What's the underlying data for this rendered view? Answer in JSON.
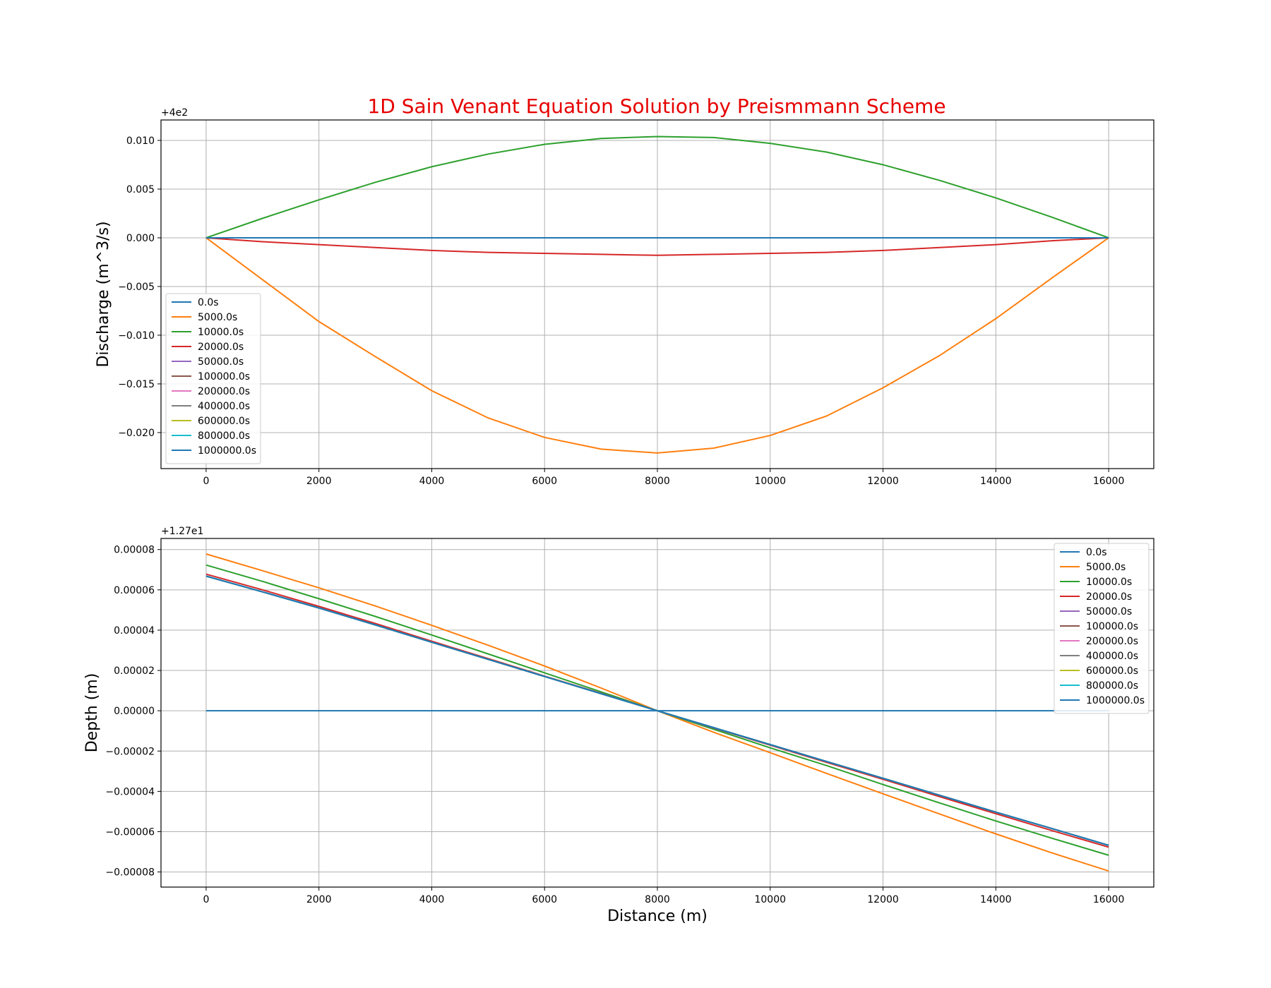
{
  "figure": {
    "title": "1D Sain Venant Equation Solution by Preismmann Scheme",
    "title_color": "#e60000"
  },
  "chart_data": [
    {
      "type": "line",
      "title": "1D Sain Venant Equation Solution by Preismmann Scheme",
      "xlabel": "",
      "ylabel": "Discharge (m^3/s)",
      "offset_label": "+4e2",
      "offset": 400,
      "xlim": [
        -800,
        16800
      ],
      "ylim": [
        -0.0237,
        0.0121
      ],
      "xticks": [
        0,
        2000,
        4000,
        6000,
        8000,
        10000,
        12000,
        14000,
        16000
      ],
      "xtick_labels": [
        "0",
        "2000",
        "4000",
        "6000",
        "8000",
        "10000",
        "12000",
        "14000",
        "16000"
      ],
      "yticks": [
        0.01,
        0.005,
        0.0,
        -0.005,
        -0.01,
        -0.015,
        -0.02
      ],
      "ytick_labels": [
        "0.010",
        "0.005",
        "0.000",
        "−0.005",
        "−0.010",
        "−0.015",
        "−0.020"
      ],
      "grid": true,
      "legend_position": "lower-left",
      "x": [
        0,
        1000,
        2000,
        3000,
        4000,
        5000,
        6000,
        7000,
        8000,
        9000,
        10000,
        11000,
        12000,
        13000,
        14000,
        15000,
        16000
      ],
      "series": [
        {
          "name": "0.0s",
          "color": "#1f77b4",
          "values": [
            0,
            0,
            0,
            0,
            0,
            0,
            0,
            0,
            0,
            0,
            0,
            0,
            0,
            0,
            0,
            0,
            0
          ]
        },
        {
          "name": "5000.0s",
          "color": "#ff7f0e",
          "values": [
            0,
            -0.0043,
            -0.0086,
            -0.0122,
            -0.0157,
            -0.0185,
            -0.0205,
            -0.0217,
            -0.0221,
            -0.0216,
            -0.0203,
            -0.0183,
            -0.0154,
            -0.0121,
            -0.0083,
            -0.0041,
            0
          ]
        },
        {
          "name": "10000.0s",
          "color": "#2ca02c",
          "values": [
            0,
            0.002,
            0.0039,
            0.0057,
            0.0073,
            0.0086,
            0.0096,
            0.0102,
            0.0104,
            0.0103,
            0.0097,
            0.0088,
            0.0075,
            0.0059,
            0.0041,
            0.0021,
            0
          ]
        },
        {
          "name": "20000.0s",
          "color": "#d62728",
          "values": [
            0,
            -0.0004,
            -0.0007,
            -0.001,
            -0.0013,
            -0.0015,
            -0.0016,
            -0.0017,
            -0.0018,
            -0.0017,
            -0.0016,
            -0.0015,
            -0.0013,
            -0.001,
            -0.0007,
            -0.0003,
            0
          ]
        },
        {
          "name": "50000.0s",
          "color": "#9467bd",
          "values": [
            0,
            0,
            0,
            0,
            0,
            0,
            0,
            0,
            0,
            0,
            0,
            0,
            0,
            0,
            0,
            0,
            0
          ]
        },
        {
          "name": "100000.0s",
          "color": "#8c564b",
          "values": [
            0,
            0,
            0,
            0,
            0,
            0,
            0,
            0,
            0,
            0,
            0,
            0,
            0,
            0,
            0,
            0,
            0
          ]
        },
        {
          "name": "200000.0s",
          "color": "#e377c2",
          "values": [
            0,
            0,
            0,
            0,
            0,
            0,
            0,
            0,
            0,
            0,
            0,
            0,
            0,
            0,
            0,
            0,
            0
          ]
        },
        {
          "name": "400000.0s",
          "color": "#7f7f7f",
          "values": [
            0,
            0,
            0,
            0,
            0,
            0,
            0,
            0,
            0,
            0,
            0,
            0,
            0,
            0,
            0,
            0,
            0
          ]
        },
        {
          "name": "600000.0s",
          "color": "#bcbd22",
          "values": [
            0,
            0,
            0,
            0,
            0,
            0,
            0,
            0,
            0,
            0,
            0,
            0,
            0,
            0,
            0,
            0,
            0
          ]
        },
        {
          "name": "800000.0s",
          "color": "#17becf",
          "values": [
            0,
            0,
            0,
            0,
            0,
            0,
            0,
            0,
            0,
            0,
            0,
            0,
            0,
            0,
            0,
            0,
            0
          ]
        },
        {
          "name": "1000000.0s",
          "color": "#1f77b4",
          "values": [
            0,
            0,
            0,
            0,
            0,
            0,
            0,
            0,
            0,
            0,
            0,
            0,
            0,
            0,
            0,
            0,
            0
          ]
        }
      ]
    },
    {
      "type": "line",
      "title": "",
      "xlabel": "Distance (m)",
      "ylabel": "Depth (m)",
      "offset_label": "+1.27e1",
      "offset": 12.7,
      "xlim": [
        -800,
        16800
      ],
      "ylim": [
        -8.75e-05,
        8.55e-05
      ],
      "xticks": [
        0,
        2000,
        4000,
        6000,
        8000,
        10000,
        12000,
        14000,
        16000
      ],
      "xtick_labels": [
        "0",
        "2000",
        "4000",
        "6000",
        "8000",
        "10000",
        "12000",
        "14000",
        "16000"
      ],
      "yticks": [
        8e-05,
        6e-05,
        4e-05,
        2e-05,
        0.0,
        -2e-05,
        -4e-05,
        -6e-05,
        -8e-05
      ],
      "ytick_labels": [
        "0.00008",
        "0.00006",
        "0.00004",
        "0.00002",
        "0.00000",
        "−0.00002",
        "−0.00004",
        "−0.00006",
        "−0.00008"
      ],
      "grid": true,
      "legend_position": "upper-right",
      "x": [
        0,
        1000,
        2000,
        3000,
        4000,
        5000,
        6000,
        7000,
        8000,
        9000,
        10000,
        11000,
        12000,
        13000,
        14000,
        15000,
        16000
      ],
      "series": [
        {
          "name": "0.0s",
          "color": "#1f77b4",
          "values": [
            0,
            0,
            0,
            0,
            0,
            0,
            0,
            0,
            0,
            0,
            0,
            0,
            0,
            0,
            0,
            0,
            0
          ]
        },
        {
          "name": "5000.0s",
          "color": "#ff7f0e",
          "values": [
            7.78e-05,
            6.95e-05,
            6.1e-05,
            5.2e-05,
            4.24e-05,
            3.25e-05,
            2.22e-05,
            1.13e-05,
            0,
            -1.07e-05,
            -2.08e-05,
            -3.11e-05,
            -4.12e-05,
            -5.12e-05,
            -6.11e-05,
            -7.06e-05,
            -7.95e-05
          ]
        },
        {
          "name": "10000.0s",
          "color": "#2ca02c",
          "values": [
            7.23e-05,
            6.42e-05,
            5.56e-05,
            4.68e-05,
            3.76e-05,
            2.82e-05,
            1.88e-05,
            9.4e-06,
            0,
            -9.2e-06,
            -1.84e-05,
            -2.72e-05,
            -3.66e-05,
            -4.57e-05,
            -5.47e-05,
            -6.33e-05,
            -7.17e-05
          ]
        },
        {
          "name": "20000.0s",
          "color": "#d62728",
          "values": [
            6.78e-05,
            6e-05,
            5.18e-05,
            4.33e-05,
            3.45e-05,
            2.59e-05,
            1.72e-05,
            8.7e-06,
            0,
            -8.6e-06,
            -1.71e-05,
            -2.56e-05,
            -3.4e-05,
            -4.26e-05,
            -5.11e-05,
            -5.95e-05,
            -6.77e-05
          ]
        },
        {
          "name": "50000.0s",
          "color": "#9467bd",
          "values": [
            6.68e-05,
            5.9e-05,
            5.1e-05,
            4.26e-05,
            3.4e-05,
            2.55e-05,
            1.7e-05,
            8.5e-06,
            0,
            -8.4e-06,
            -1.68e-05,
            -2.52e-05,
            -3.35e-05,
            -4.19e-05,
            -5.03e-05,
            -5.85e-05,
            -6.68e-05
          ]
        },
        {
          "name": "100000.0s",
          "color": "#8c564b",
          "values": [
            6.68e-05,
            5.9e-05,
            5.1e-05,
            4.26e-05,
            3.4e-05,
            2.55e-05,
            1.7e-05,
            8.5e-06,
            0,
            -8.4e-06,
            -1.68e-05,
            -2.52e-05,
            -3.35e-05,
            -4.19e-05,
            -5.03e-05,
            -5.85e-05,
            -6.68e-05
          ]
        },
        {
          "name": "200000.0s",
          "color": "#e377c2",
          "values": [
            6.68e-05,
            5.9e-05,
            5.1e-05,
            4.26e-05,
            3.4e-05,
            2.55e-05,
            1.7e-05,
            8.5e-06,
            0,
            -8.4e-06,
            -1.68e-05,
            -2.52e-05,
            -3.35e-05,
            -4.19e-05,
            -5.03e-05,
            -5.85e-05,
            -6.68e-05
          ]
        },
        {
          "name": "400000.0s",
          "color": "#7f7f7f",
          "values": [
            6.68e-05,
            5.9e-05,
            5.1e-05,
            4.26e-05,
            3.4e-05,
            2.55e-05,
            1.7e-05,
            8.5e-06,
            0,
            -8.4e-06,
            -1.68e-05,
            -2.52e-05,
            -3.35e-05,
            -4.19e-05,
            -5.03e-05,
            -5.85e-05,
            -6.68e-05
          ]
        },
        {
          "name": "600000.0s",
          "color": "#bcbd22",
          "values": [
            6.68e-05,
            5.9e-05,
            5.1e-05,
            4.26e-05,
            3.4e-05,
            2.55e-05,
            1.7e-05,
            8.5e-06,
            0,
            -8.4e-06,
            -1.68e-05,
            -2.52e-05,
            -3.35e-05,
            -4.19e-05,
            -5.03e-05,
            -5.85e-05,
            -6.68e-05
          ]
        },
        {
          "name": "800000.0s",
          "color": "#17becf",
          "values": [
            6.68e-05,
            5.9e-05,
            5.1e-05,
            4.26e-05,
            3.4e-05,
            2.55e-05,
            1.7e-05,
            8.5e-06,
            0,
            -8.4e-06,
            -1.68e-05,
            -2.52e-05,
            -3.35e-05,
            -4.19e-05,
            -5.03e-05,
            -5.85e-05,
            -6.68e-05
          ]
        },
        {
          "name": "1000000.0s",
          "color": "#1f77b4",
          "values": [
            6.68e-05,
            5.9e-05,
            5.1e-05,
            4.26e-05,
            3.4e-05,
            2.55e-05,
            1.7e-05,
            8.5e-06,
            0,
            -8.4e-06,
            -1.68e-05,
            -2.52e-05,
            -3.35e-05,
            -4.19e-05,
            -5.03e-05,
            -5.85e-05,
            -6.68e-05
          ]
        }
      ]
    }
  ]
}
